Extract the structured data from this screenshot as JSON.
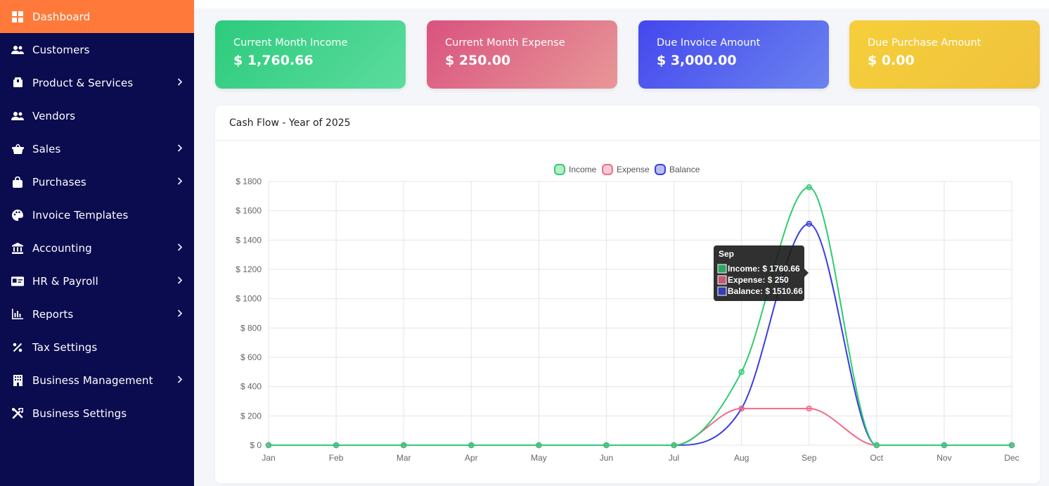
{
  "sidebar": {
    "items": [
      {
        "label": "Dashboard",
        "icon": "dashboard-icon",
        "chevron": false,
        "active": true
      },
      {
        "label": "Customers",
        "icon": "users-icon",
        "chevron": false,
        "active": false
      },
      {
        "label": "Product & Services",
        "icon": "box-icon",
        "chevron": true,
        "active": false
      },
      {
        "label": "Vendors",
        "icon": "users-icon",
        "chevron": false,
        "active": false
      },
      {
        "label": "Sales",
        "icon": "basket-icon",
        "chevron": true,
        "active": false
      },
      {
        "label": "Purchases",
        "icon": "bag-icon",
        "chevron": true,
        "active": false
      },
      {
        "label": "Invoice Templates",
        "icon": "palette-icon",
        "chevron": false,
        "active": false
      },
      {
        "label": "Accounting",
        "icon": "bank-icon",
        "chevron": true,
        "active": false
      },
      {
        "label": "HR & Payroll",
        "icon": "id-card-icon",
        "chevron": true,
        "active": false
      },
      {
        "label": "Reports",
        "icon": "chart-icon",
        "chevron": true,
        "active": false
      },
      {
        "label": "Tax Settings",
        "icon": "percent-icon",
        "chevron": false,
        "active": false
      },
      {
        "label": "Business Management",
        "icon": "building-icon",
        "chevron": true,
        "active": false
      },
      {
        "label": "Business Settings",
        "icon": "tools-icon",
        "chevron": false,
        "active": false
      }
    ]
  },
  "cards": [
    {
      "title": "Current Month Income",
      "value": "$ 1,760.66"
    },
    {
      "title": "Current Month Expense",
      "value": "$ 250.00"
    },
    {
      "title": "Due Invoice Amount",
      "value": "$ 3,000.00"
    },
    {
      "title": "Due Purchase Amount",
      "value": "$ 0.00"
    }
  ],
  "panel": {
    "title": "Cash Flow - Year of 2025"
  },
  "colors": {
    "sidebar_bg": "#0b0b4f",
    "active": "#ff7a3a",
    "income": "#2ecc71",
    "expense": "#f06b8a",
    "balance": "#3b3fe0"
  },
  "chart_data": {
    "type": "line",
    "title": "",
    "x": [
      "Jan",
      "Feb",
      "Mar",
      "Apr",
      "May",
      "Jun",
      "Jul",
      "Aug",
      "Sep",
      "Oct",
      "Nov",
      "Dec"
    ],
    "series": [
      {
        "name": "Income",
        "values": [
          0,
          0,
          0,
          0,
          0,
          0,
          0,
          500,
          1760.66,
          0,
          0,
          0
        ]
      },
      {
        "name": "Expense",
        "values": [
          0,
          0,
          0,
          0,
          0,
          0,
          0,
          250,
          250,
          0,
          0,
          0
        ]
      },
      {
        "name": "Balance",
        "values": [
          0,
          0,
          0,
          0,
          0,
          0,
          0,
          250,
          1510.66,
          0,
          0,
          0
        ]
      }
    ],
    "ylim": [
      0,
      1800
    ],
    "yticks": [
      "$ 0",
      "$ 200",
      "$ 400",
      "$ 600",
      "$ 800",
      "$ 1000",
      "$ 1200",
      "$ 1400",
      "$ 1600",
      "$ 1800"
    ],
    "grid": true,
    "legend": "top-center",
    "tooltip": {
      "title": "Sep",
      "lines": [
        "Income: $ 1760.66",
        "Expense: $ 250",
        "Balance: $ 1510.66"
      ]
    }
  }
}
